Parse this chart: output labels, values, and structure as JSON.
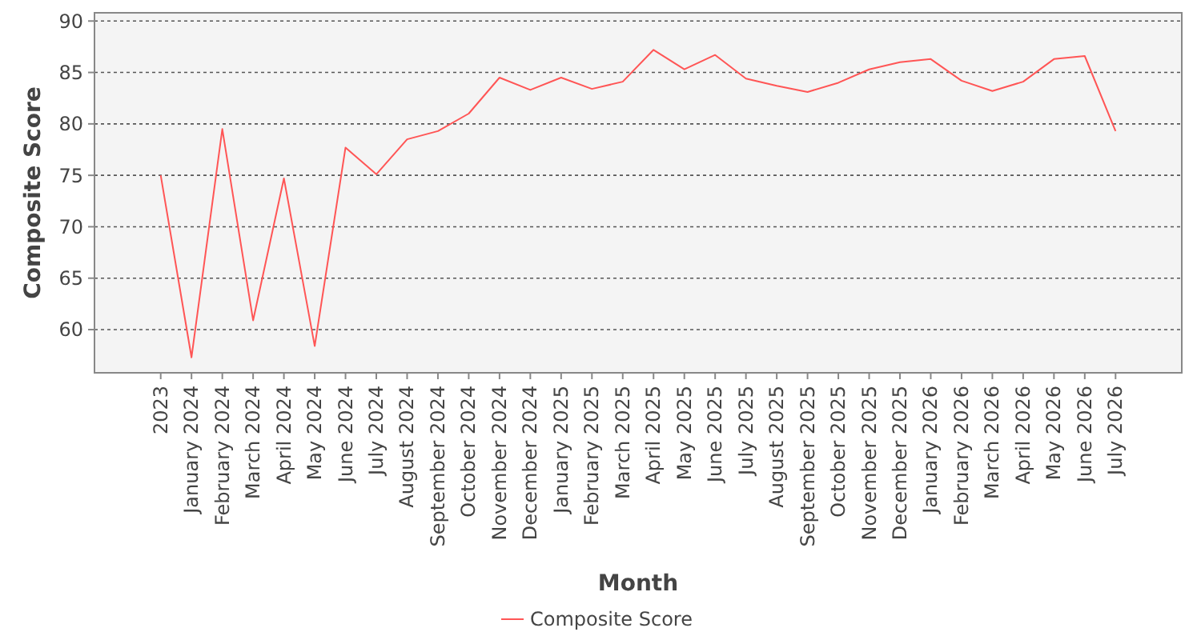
{
  "chart_data": {
    "type": "line",
    "xlabel": "Month",
    "ylabel": "Composite Score",
    "categories": [
      "2023",
      "January 2024",
      "February 2024",
      "March 2024",
      "April 2024",
      "May 2024",
      "June 2024",
      "July 2024",
      "August 2024",
      "September 2024",
      "October 2024",
      "November 2024",
      "December 2024",
      "January 2025",
      "February 2025",
      "March 2025",
      "April 2025",
      "May 2025",
      "June 2025",
      "July 2025",
      "August 2025",
      "September 2025",
      "October 2025",
      "November 2025",
      "December 2025",
      "January 2026",
      "February 2026",
      "March 2026",
      "April 2026",
      "May 2026",
      "June 2026",
      "July 2026"
    ],
    "series": [
      {
        "name": "Composite Score",
        "color": "#ff5555",
        "values": [
          75.0,
          57.3,
          79.5,
          60.9,
          74.7,
          58.4,
          77.7,
          75.1,
          78.5,
          79.3,
          81.0,
          84.5,
          83.3,
          84.5,
          83.4,
          84.1,
          87.2,
          85.3,
          86.7,
          84.4,
          83.7,
          83.1,
          84.0,
          85.3,
          86.0,
          86.3,
          84.2,
          83.2,
          84.1,
          86.3,
          86.6,
          79.3
        ]
      }
    ],
    "ylim": [
      55.8,
      90.8
    ],
    "yticks": [
      60,
      65,
      70,
      75,
      80,
      85,
      90
    ],
    "grid": "y",
    "legend": "bottom",
    "marker": "none",
    "line_style": "solid"
  }
}
